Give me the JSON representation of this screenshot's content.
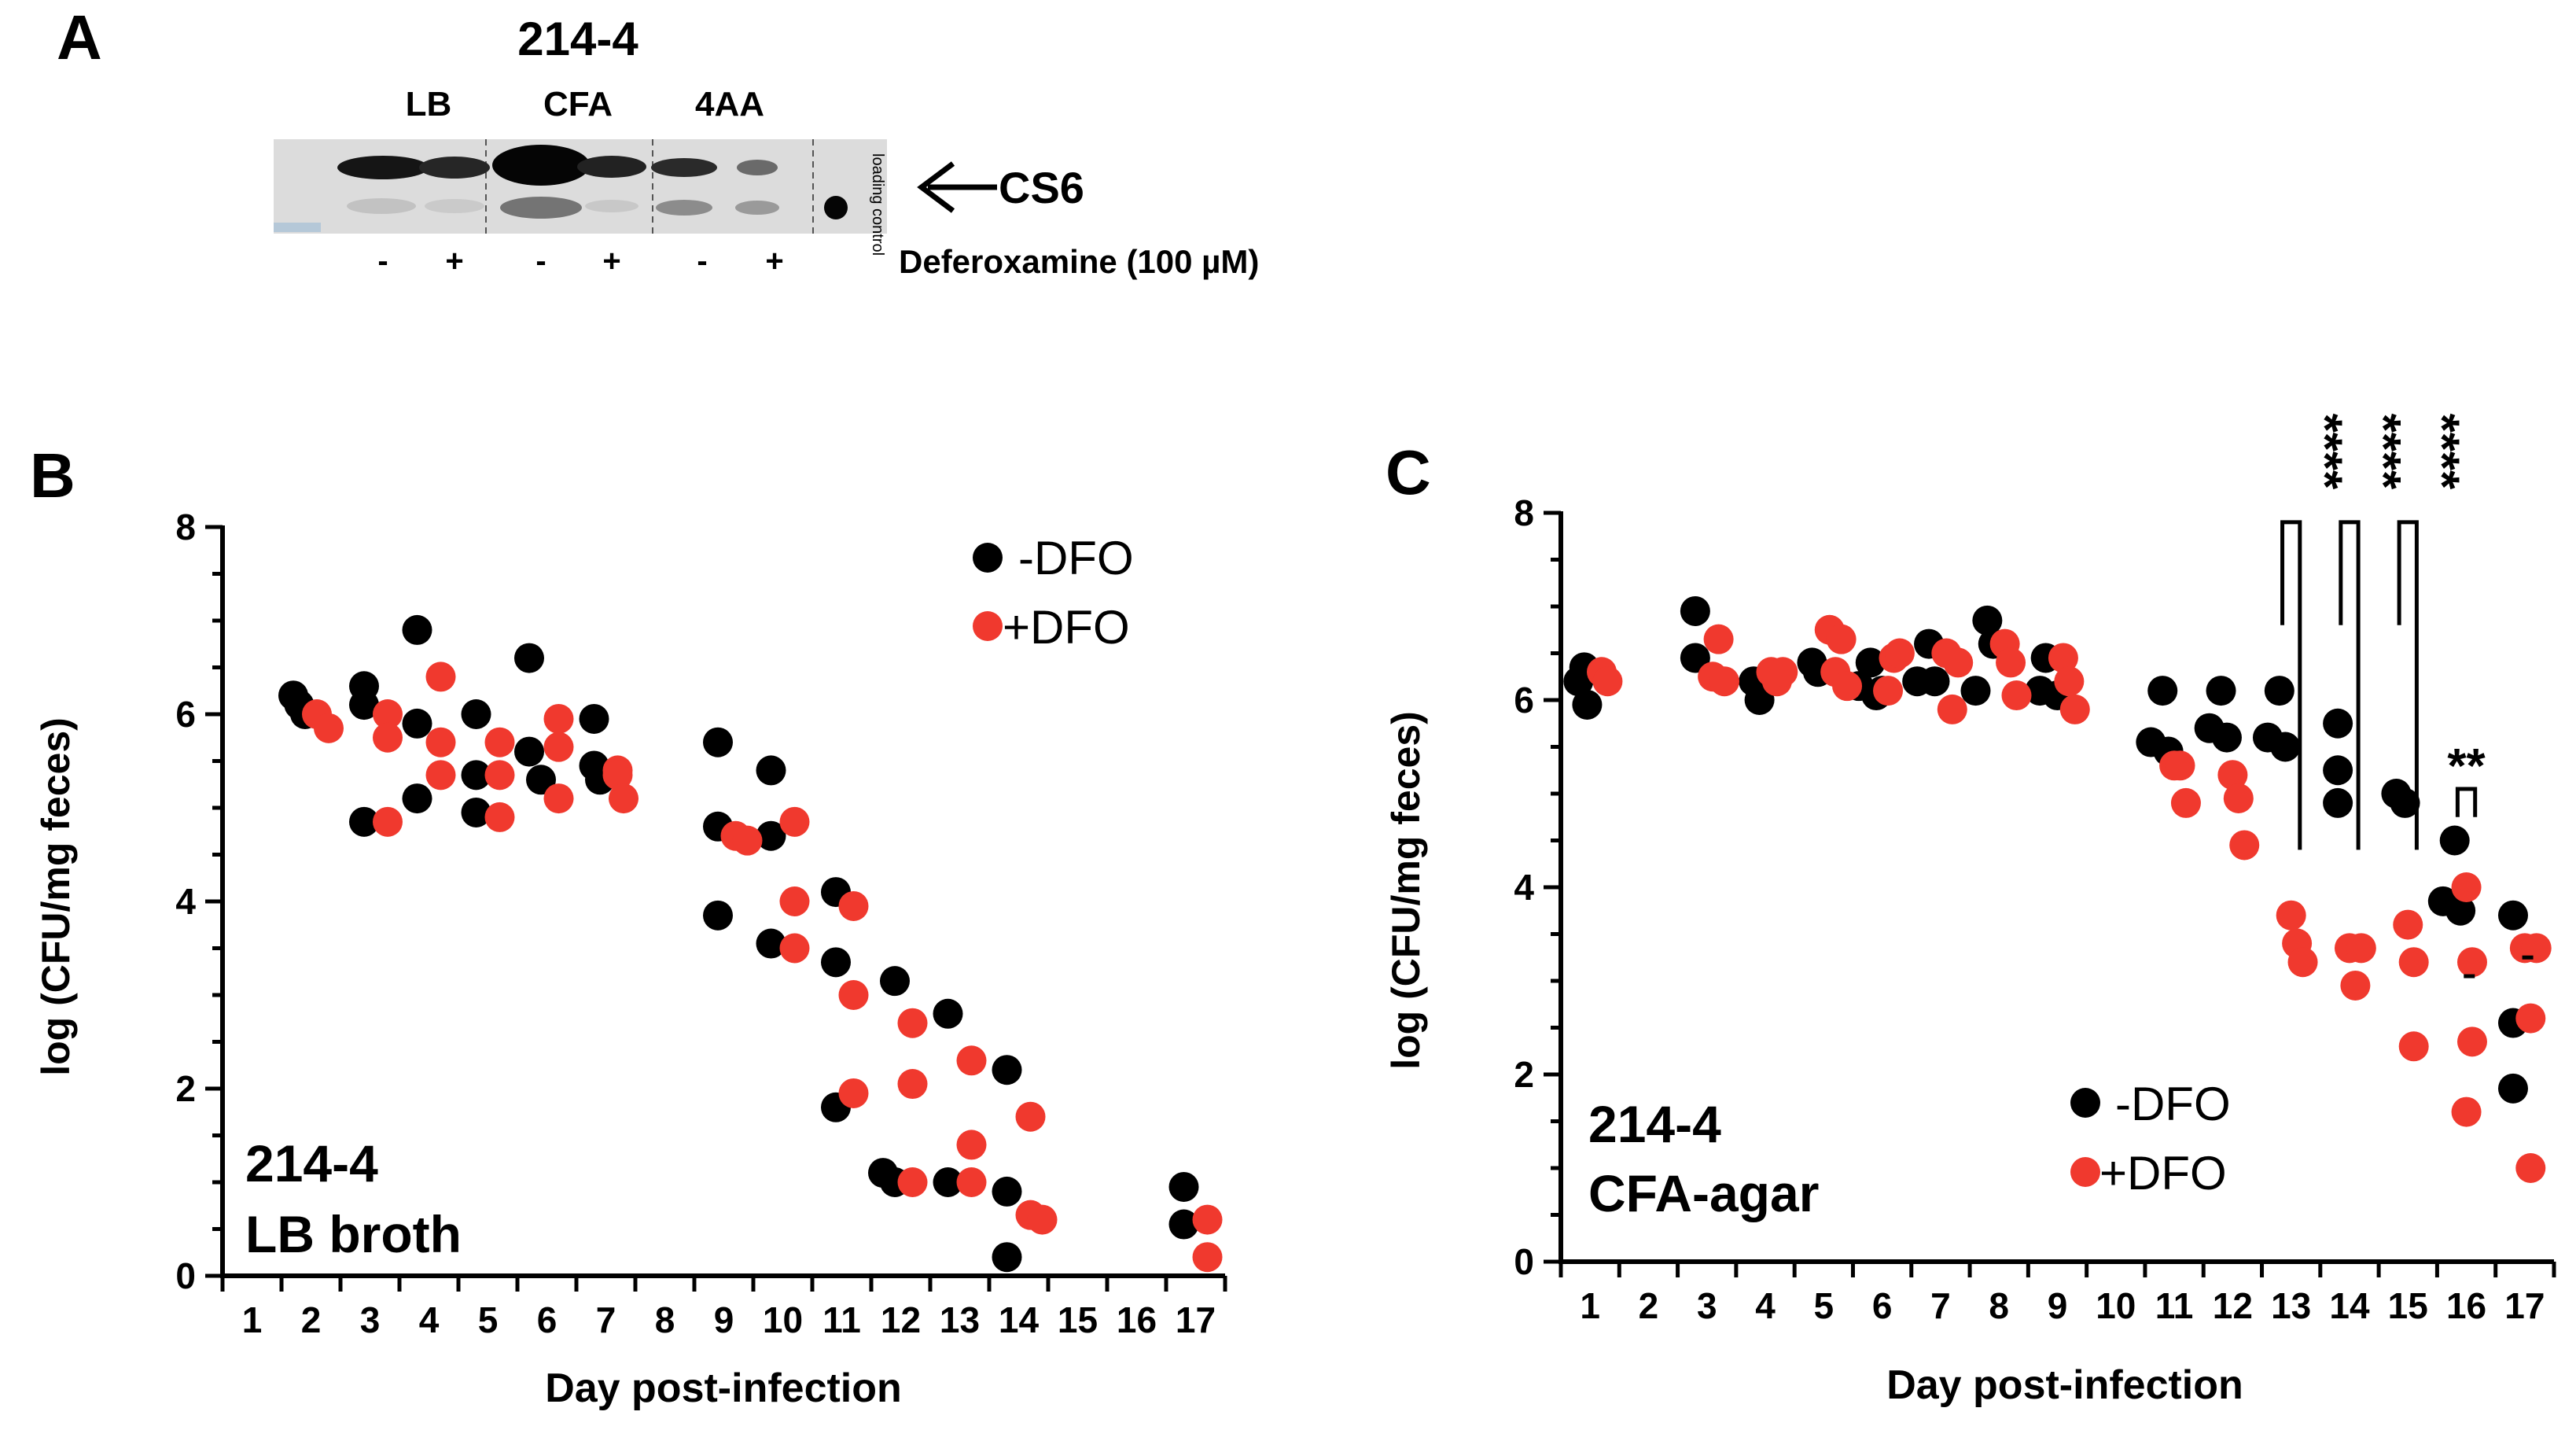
{
  "panel_a": {
    "letter": "A",
    "strain": "214-4",
    "media": [
      "LB",
      "CFA",
      "4AA"
    ],
    "band_label": "CS6",
    "loading_control": "loading control",
    "treatment_signs": [
      "-",
      "+",
      "-",
      "+",
      "-",
      "+"
    ],
    "treatment_label": "Deferoxamine (100 µM)"
  },
  "colors": {
    "neg": "#000000",
    "pos": "#f0392e",
    "axis": "#000000"
  },
  "chart_data": [
    {
      "type": "scatter",
      "panel": "B",
      "xlabel": "Day post-infection",
      "ylabel": "log (CFU/mg feces)",
      "xticks": [
        1,
        2,
        3,
        4,
        5,
        6,
        7,
        8,
        9,
        10,
        11,
        12,
        13,
        14,
        15,
        16,
        17
      ],
      "yticks": [
        0,
        2,
        4,
        6,
        8
      ],
      "xlim": [
        0.5,
        17.5
      ],
      "ylim": [
        0,
        8
      ],
      "legend": [
        "-DFO",
        "+DFO"
      ],
      "legend_position": "top-right",
      "annotation": [
        "214-4",
        "LB broth"
      ],
      "series": [
        {
          "name": "-DFO",
          "color": "#000000",
          "points": [
            [
              1.7,
              6.2
            ],
            [
              1.9,
              6.0
            ],
            [
              1.8,
              6.1
            ],
            [
              2.9,
              6.3
            ],
            [
              2.9,
              6.1
            ],
            [
              2.9,
              4.85
            ],
            [
              3.8,
              6.9
            ],
            [
              3.8,
              5.9
            ],
            [
              3.8,
              5.1
            ],
            [
              4.8,
              6.0
            ],
            [
              4.8,
              5.35
            ],
            [
              4.8,
              4.95
            ],
            [
              5.7,
              6.6
            ],
            [
              5.7,
              5.6
            ],
            [
              5.9,
              5.3
            ],
            [
              6.8,
              5.95
            ],
            [
              6.8,
              5.45
            ],
            [
              6.9,
              5.3
            ],
            [
              8.9,
              5.7
            ],
            [
              8.9,
              4.8
            ],
            [
              8.9,
              3.85
            ],
            [
              9.8,
              5.4
            ],
            [
              9.8,
              4.7
            ],
            [
              9.8,
              3.55
            ],
            [
              10.9,
              4.1
            ],
            [
              10.9,
              3.35
            ],
            [
              10.9,
              1.8
            ],
            [
              11.9,
              3.15
            ],
            [
              11.7,
              1.1
            ],
            [
              11.9,
              1.0
            ],
            [
              12.8,
              2.8
            ],
            [
              12.8,
              1.0
            ],
            [
              13.8,
              2.2
            ],
            [
              13.8,
              0.9
            ],
            [
              13.8,
              0.2
            ],
            [
              16.8,
              0.95
            ],
            [
              16.8,
              0.55
            ]
          ]
        },
        {
          "name": "+DFO",
          "color": "#f0392e",
          "points": [
            [
              2.1,
              6.0
            ],
            [
              2.3,
              5.85
            ],
            [
              3.3,
              6.0
            ],
            [
              3.3,
              5.75
            ],
            [
              3.3,
              4.85
            ],
            [
              4.2,
              6.4
            ],
            [
              4.2,
              5.7
            ],
            [
              4.2,
              5.35
            ],
            [
              5.2,
              5.7
            ],
            [
              5.2,
              5.35
            ],
            [
              5.2,
              4.9
            ],
            [
              6.2,
              5.95
            ],
            [
              6.2,
              5.65
            ],
            [
              6.2,
              5.1
            ],
            [
              7.2,
              5.4
            ],
            [
              7.2,
              5.35
            ],
            [
              7.3,
              5.1
            ],
            [
              9.2,
              4.7
            ],
            [
              9.4,
              4.65
            ],
            [
              10.2,
              4.85
            ],
            [
              10.2,
              4.0
            ],
            [
              10.2,
              3.5
            ],
            [
              11.2,
              3.95
            ],
            [
              11.2,
              3.0
            ],
            [
              11.2,
              1.95
            ],
            [
              12.2,
              2.7
            ],
            [
              12.2,
              2.05
            ],
            [
              12.2,
              1.0
            ],
            [
              13.2,
              2.3
            ],
            [
              13.2,
              1.4
            ],
            [
              13.2,
              1.0
            ],
            [
              14.2,
              1.7
            ],
            [
              14.2,
              0.65
            ],
            [
              14.4,
              0.6
            ],
            [
              17.2,
              0.6
            ],
            [
              17.2,
              0.2
            ]
          ]
        }
      ]
    },
    {
      "type": "scatter",
      "panel": "C",
      "xlabel": "Day post-infection",
      "ylabel": "log (CFU/mg feces)",
      "xticks": [
        1,
        2,
        3,
        4,
        5,
        6,
        7,
        8,
        9,
        10,
        11,
        12,
        13,
        14,
        15,
        16,
        17
      ],
      "yticks": [
        0,
        2,
        4,
        6,
        8
      ],
      "xlim": [
        0.5,
        17.5
      ],
      "ylim": [
        0,
        8
      ],
      "legend": [
        "-DFO",
        "+DFO"
      ],
      "legend_position": "bottom-center",
      "annotation": [
        "214-4",
        "CFA-agar"
      ],
      "significance": [
        {
          "day": 13,
          "label": "****"
        },
        {
          "day": 14,
          "label": "****"
        },
        {
          "day": 15,
          "label": "****"
        },
        {
          "day": 16,
          "label": "**"
        }
      ],
      "dash_marks": [
        [
          16.05,
          3.05
        ],
        [
          17.05,
          3.25
        ]
      ],
      "series": [
        {
          "name": "-DFO",
          "color": "#000000",
          "points": [
            [
              0.8,
              6.2
            ],
            [
              0.9,
              6.35
            ],
            [
              0.95,
              5.95
            ],
            [
              2.8,
              6.95
            ],
            [
              2.8,
              6.45
            ],
            [
              3.8,
              6.2
            ],
            [
              3.9,
              6.0
            ],
            [
              4.8,
              6.4
            ],
            [
              4.9,
              6.3
            ],
            [
              5.6,
              6.15
            ],
            [
              5.8,
              6.4
            ],
            [
              5.9,
              6.05
            ],
            [
              6.0,
              6.1
            ],
            [
              6.6,
              6.2
            ],
            [
              6.8,
              6.6
            ],
            [
              6.9,
              6.2
            ],
            [
              7.6,
              6.1
            ],
            [
              7.8,
              6.85
            ],
            [
              7.9,
              6.6
            ],
            [
              8.7,
              6.1
            ],
            [
              8.8,
              6.45
            ],
            [
              9.0,
              6.05
            ],
            [
              10.6,
              5.55
            ],
            [
              10.8,
              6.1
            ],
            [
              10.9,
              5.45
            ],
            [
              11.6,
              5.7
            ],
            [
              11.8,
              6.1
            ],
            [
              11.9,
              5.6
            ],
            [
              12.6,
              5.6
            ],
            [
              12.8,
              6.1
            ],
            [
              12.9,
              5.5
            ],
            [
              13.8,
              5.75
            ],
            [
              13.8,
              5.25
            ],
            [
              13.8,
              4.9
            ],
            [
              14.8,
              5.0
            ],
            [
              14.95,
              4.9
            ],
            [
              15.6,
              3.85
            ],
            [
              15.8,
              4.5
            ],
            [
              15.9,
              3.75
            ],
            [
              16.8,
              3.7
            ],
            [
              16.8,
              2.55
            ],
            [
              16.8,
              1.85
            ]
          ]
        },
        {
          "name": "+DFO",
          "color": "#f0392e",
          "points": [
            [
              1.2,
              6.3
            ],
            [
              1.3,
              6.2
            ],
            [
              3.1,
              6.25
            ],
            [
              3.2,
              6.65
            ],
            [
              3.3,
              6.2
            ],
            [
              4.1,
              6.3
            ],
            [
              4.2,
              6.2
            ],
            [
              4.3,
              6.3
            ],
            [
              5.1,
              6.75
            ],
            [
              5.2,
              6.3
            ],
            [
              5.3,
              6.65
            ],
            [
              5.4,
              6.15
            ],
            [
              6.1,
              6.1
            ],
            [
              6.2,
              6.45
            ],
            [
              6.3,
              6.5
            ],
            [
              7.1,
              6.5
            ],
            [
              7.2,
              5.9
            ],
            [
              7.3,
              6.4
            ],
            [
              8.1,
              6.6
            ],
            [
              8.2,
              6.4
            ],
            [
              8.3,
              6.05
            ],
            [
              9.1,
              6.45
            ],
            [
              9.2,
              6.2
            ],
            [
              9.3,
              5.9
            ],
            [
              11.0,
              5.3
            ],
            [
              11.1,
              5.3
            ],
            [
              11.2,
              4.9
            ],
            [
              12.0,
              5.2
            ],
            [
              12.1,
              4.95
            ],
            [
              12.2,
              4.45
            ],
            [
              13.0,
              3.7
            ],
            [
              13.1,
              3.4
            ],
            [
              13.2,
              3.2
            ],
            [
              14.0,
              3.35
            ],
            [
              14.1,
              2.95
            ],
            [
              14.2,
              3.35
            ],
            [
              15.0,
              3.6
            ],
            [
              15.1,
              3.2
            ],
            [
              15.1,
              2.3
            ],
            [
              16.0,
              4.0
            ],
            [
              16.1,
              3.2
            ],
            [
              16.1,
              2.35
            ],
            [
              16.0,
              1.6
            ],
            [
              17.0,
              3.35
            ],
            [
              17.1,
              2.6
            ],
            [
              17.2,
              3.35
            ],
            [
              17.1,
              1.0
            ]
          ]
        }
      ]
    }
  ]
}
